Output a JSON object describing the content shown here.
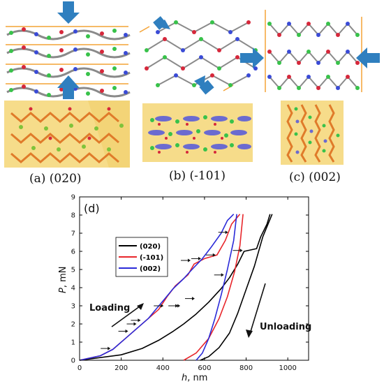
{
  "panel_captions": {
    "a": "(a) (020)",
    "b": "(b) (-101)",
    "c": "(c) (002)"
  },
  "colors": {
    "arrow_blue": "#2f7fbf",
    "plane_orange": "#f4a335",
    "crystal_yellow": "#f6dc8a",
    "atom_red": "#d6283b",
    "atom_green": "#38c24a",
    "atom_blue": "#3a4bd6",
    "atom_grey": "#888888",
    "series_020": "#000000",
    "series_m101": "#e8262b",
    "series_002": "#2a2ad8"
  },
  "icons": [
    "down-arrow-icon",
    "up-arrow-icon",
    "right-arrow-icon",
    "left-arrow-icon",
    "diagonal-arrow-icon"
  ],
  "chart_data": {
    "type": "line",
    "panel_label": "(d)",
    "xlabel_italic": "h",
    "xlabel_unit": ", nm",
    "ylabel_italic": "P",
    "ylabel_unit": ", mN",
    "xlim": [
      0,
      1100
    ],
    "ylim": [
      0,
      9
    ],
    "xticks": [
      "0",
      "200",
      "400",
      "600",
      "800",
      "1000"
    ],
    "yticks": [
      "0",
      "1",
      "2",
      "3",
      "4",
      "5",
      "6",
      "7",
      "8",
      "9"
    ],
    "annotations": {
      "loading": "Loading",
      "unloading": "Unloading"
    },
    "legend_position": "upper-left",
    "series": [
      {
        "name": "(020)",
        "color": "#000000",
        "loading": [
          [
            0,
            0
          ],
          [
            200,
            0.3
          ],
          [
            300,
            0.65
          ],
          [
            380,
            1.1
          ],
          [
            450,
            1.6
          ],
          [
            500,
            2.0
          ],
          [
            560,
            2.55
          ],
          [
            620,
            3.2
          ],
          [
            680,
            3.95
          ],
          [
            720,
            4.55
          ],
          [
            760,
            5.3
          ],
          [
            790,
            6.0
          ],
          [
            850,
            6.15
          ],
          [
            870,
            6.8
          ],
          [
            900,
            7.5
          ],
          [
            915,
            8.05
          ]
        ],
        "unloading": [
          [
            925,
            8.05
          ],
          [
            880,
            6.8
          ],
          [
            840,
            5.2
          ],
          [
            800,
            3.9
          ],
          [
            760,
            2.6
          ],
          [
            720,
            1.5
          ],
          [
            670,
            0.7
          ],
          [
            620,
            0.2
          ],
          [
            580,
            0
          ]
        ]
      },
      {
        "name": "(-101)",
        "color": "#e8262b",
        "loading": [
          [
            0,
            0
          ],
          [
            100,
            0.25
          ],
          [
            160,
            0.6
          ],
          [
            220,
            1.2
          ],
          [
            280,
            1.8
          ],
          [
            330,
            2.3
          ],
          [
            380,
            2.8
          ],
          [
            420,
            3.5
          ],
          [
            460,
            4.1
          ],
          [
            520,
            4.7
          ],
          [
            550,
            5.3
          ],
          [
            600,
            5.6
          ],
          [
            660,
            5.8
          ],
          [
            700,
            6.6
          ],
          [
            730,
            7.5
          ],
          [
            770,
            8.05
          ]
        ],
        "unloading": [
          [
            785,
            8.05
          ],
          [
            770,
            6.3
          ],
          [
            745,
            4.9
          ],
          [
            710,
            3.5
          ],
          [
            670,
            2.3
          ],
          [
            620,
            1.2
          ],
          [
            560,
            0.4
          ],
          [
            500,
            0
          ]
        ]
      },
      {
        "name": "(002)",
        "color": "#2a2ad8",
        "loading": [
          [
            0,
            0
          ],
          [
            100,
            0.25
          ],
          [
            160,
            0.6
          ],
          [
            220,
            1.2
          ],
          [
            280,
            1.8
          ],
          [
            330,
            2.3
          ],
          [
            370,
            2.85
          ],
          [
            410,
            3.4
          ],
          [
            450,
            3.95
          ],
          [
            500,
            4.5
          ],
          [
            540,
            5.0
          ],
          [
            590,
            5.6
          ],
          [
            630,
            6.2
          ],
          [
            680,
            7.0
          ],
          [
            710,
            7.7
          ],
          [
            740,
            8.05
          ]
        ],
        "unloading": [
          [
            755,
            8.05
          ],
          [
            740,
            6.6
          ],
          [
            710,
            5.0
          ],
          [
            680,
            3.6
          ],
          [
            650,
            2.3
          ],
          [
            620,
            1.2
          ],
          [
            590,
            0.4
          ],
          [
            560,
            0
          ]
        ]
      }
    ],
    "pop_in_arrows": [
      [
        155,
        0.65
      ],
      [
        240,
        1.6
      ],
      [
        280,
        2.0
      ],
      [
        300,
        2.2
      ],
      [
        410,
        3.0
      ],
      [
        480,
        3.0
      ],
      [
        490,
        3.0
      ],
      [
        560,
        3.4
      ],
      [
        540,
        5.5
      ],
      [
        590,
        5.6
      ],
      [
        660,
        5.8
      ],
      [
        700,
        4.7
      ],
      [
        790,
        6.05
      ],
      [
        720,
        7.05
      ]
    ]
  }
}
